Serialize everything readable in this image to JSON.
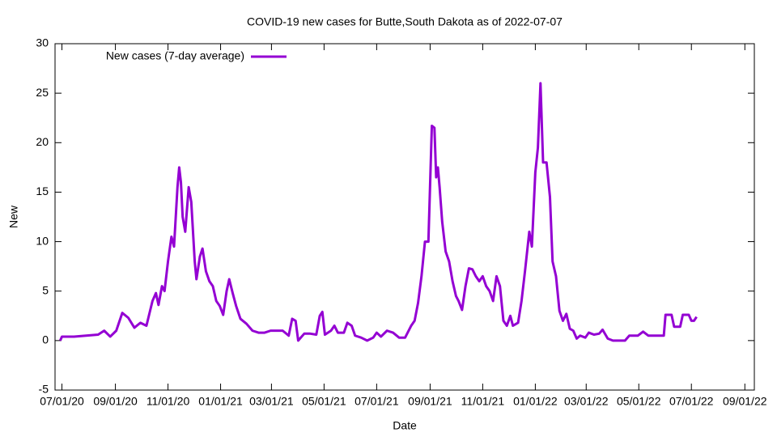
{
  "chart_data": {
    "type": "line",
    "title": "COVID-19 new cases for Butte,South Dakota as of 2022-07-07",
    "x_label": "Date",
    "y_label": "New",
    "x": [
      "06/29/20",
      "07/01/20",
      "07/15/20",
      "07/29/20",
      "08/12/20",
      "08/19/20",
      "08/26/20",
      "09/02/20",
      "09/09/20",
      "09/16/20",
      "09/23/20",
      "09/30/20",
      "10/07/20",
      "10/14/20",
      "10/18/20",
      "10/21/20",
      "10/25/20",
      "10/28/20",
      "11/01/20",
      "11/05/20",
      "11/08/20",
      "11/12/20",
      "11/14/20",
      "11/16/20",
      "11/18/20",
      "11/21/20",
      "11/25/20",
      "11/28/20",
      "12/02/20",
      "12/04/20",
      "12/08/20",
      "12/11/20",
      "12/15/20",
      "12/19/20",
      "12/23/20",
      "12/27/20",
      "12/31/20",
      "01/04/21",
      "01/08/21",
      "01/11/21",
      "01/15/21",
      "01/19/21",
      "01/24/21",
      "01/31/21",
      "02/07/21",
      "02/14/21",
      "02/21/21",
      "02/28/21",
      "03/07/21",
      "03/14/21",
      "03/21/21",
      "03/25/21",
      "03/29/21",
      "04/01/21",
      "04/08/21",
      "04/15/21",
      "04/22/21",
      "04/26/21",
      "04/29/21",
      "05/02/21",
      "05/09/21",
      "05/13/21",
      "05/17/21",
      "05/24/21",
      "05/28/21",
      "06/02/21",
      "06/06/21",
      "06/13/21",
      "06/20/21",
      "06/27/21",
      "07/01/21",
      "07/06/21",
      "07/13/21",
      "07/20/21",
      "07/27/21",
      "08/03/21",
      "08/10/21",
      "08/14/21",
      "08/18/21",
      "08/22/21",
      "08/26/21",
      "08/30/21",
      "09/03/21",
      "09/06/21",
      "09/08/21",
      "09/10/21",
      "09/12/21",
      "09/15/21",
      "09/19/21",
      "09/23/21",
      "09/27/21",
      "10/01/21",
      "10/04/21",
      "10/08/21",
      "10/12/21",
      "10/16/21",
      "10/20/21",
      "10/24/21",
      "10/28/21",
      "11/01/21",
      "11/05/21",
      "11/09/21",
      "11/13/21",
      "11/17/21",
      "11/21/21",
      "11/25/21",
      "11/29/21",
      "12/03/21",
      "12/06/21",
      "12/12/21",
      "12/16/21",
      "12/20/21",
      "12/25/21",
      "12/28/21",
      "01/01/22",
      "01/04/22",
      "01/07/22",
      "01/10/22",
      "01/14/22",
      "01/18/22",
      "01/21/22",
      "01/25/22",
      "01/29/22",
      "02/02/22",
      "02/06/22",
      "02/10/22",
      "02/14/22",
      "02/18/22",
      "02/22/22",
      "02/28/22",
      "03/04/22",
      "03/10/22",
      "03/16/22",
      "03/20/22",
      "03/26/22",
      "04/01/22",
      "04/08/22",
      "04/15/22",
      "04/20/22",
      "04/30/22",
      "05/06/22",
      "05/12/22",
      "05/20/22",
      "05/30/22",
      "06/01/22",
      "06/08/22",
      "06/11/22",
      "06/18/22",
      "06/21/22",
      "06/28/22",
      "07/01/22",
      "07/04/22",
      "07/07/22"
    ],
    "series": [
      {
        "name": "New cases (7-day average)",
        "color": "#9400d3",
        "values": [
          0,
          0.4,
          0.4,
          0.5,
          0.6,
          1.0,
          0.4,
          1.0,
          2.8,
          2.3,
          1.3,
          1.8,
          1.5,
          4.0,
          4.8,
          3.6,
          5.5,
          5.0,
          8.0,
          10.5,
          9.5,
          15.5,
          17.5,
          16,
          12.5,
          11,
          15.5,
          14,
          8,
          6.2,
          8.5,
          9.3,
          7,
          6,
          5.5,
          4,
          3.5,
          2.6,
          5,
          6.2,
          4.8,
          3.5,
          2.2,
          1.7,
          1,
          0.8,
          0.8,
          1,
          1,
          1,
          0.5,
          2.2,
          2,
          0,
          0.7,
          0.7,
          0.6,
          2.5,
          2.9,
          0.6,
          1,
          1.5,
          0.8,
          0.8,
          1.8,
          1.5,
          0.5,
          0.3,
          0,
          0.3,
          0.8,
          0.4,
          1,
          0.8,
          0.3,
          0.3,
          1.5,
          2,
          3.8,
          6.5,
          10,
          10,
          21.7,
          21.5,
          16.5,
          17.5,
          15.5,
          12,
          9,
          8,
          6,
          4.5,
          4,
          3.1,
          5.5,
          7.3,
          7.2,
          6.5,
          6,
          6.5,
          5.5,
          5,
          4,
          6.5,
          5.5,
          2,
          1.5,
          2.5,
          1.5,
          1.8,
          4,
          7,
          11,
          9.5,
          17,
          19.5,
          26,
          18,
          18,
          14.5,
          8,
          6.5,
          3,
          2,
          2.7,
          1.2,
          1,
          0.2,
          0.5,
          0.3,
          0.8,
          0.6,
          0.7,
          1.1,
          0.2,
          0,
          0,
          0,
          0.5,
          0.5,
          0.9,
          0.5,
          0.5,
          0.5,
          2.6,
          2.6,
          1.4,
          1.4,
          2.6,
          2.6,
          2,
          2,
          2.4
        ]
      }
    ],
    "xlim": [
      "06/23/20",
      "09/12/22"
    ],
    "xticks": [
      "07/01/20",
      "09/01/20",
      "11/01/20",
      "01/01/21",
      "03/01/21",
      "05/01/21",
      "07/01/21",
      "09/01/21",
      "11/01/21",
      "01/01/22",
      "03/01/22",
      "05/01/22",
      "07/01/22",
      "09/01/22"
    ],
    "ylim": [
      -5,
      30
    ],
    "yticks": [
      -5,
      0,
      5,
      10,
      15,
      20,
      25,
      30
    ],
    "grid": false,
    "legend": "top-left"
  }
}
